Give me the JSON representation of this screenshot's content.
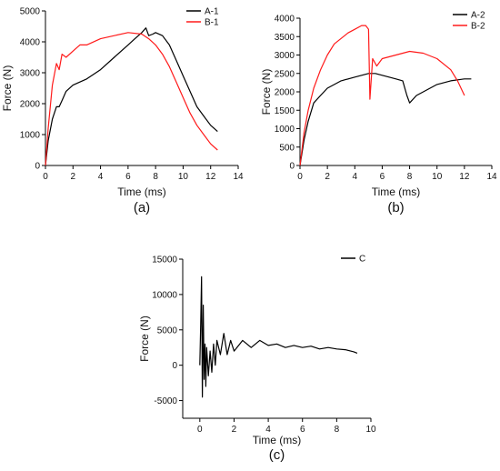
{
  "chart_data": [
    {
      "type": "line",
      "panel_label": "(a)",
      "xlabel": "Time (ms)",
      "ylabel": "Force (N)",
      "xlim": [
        0,
        14
      ],
      "ylim": [
        0,
        5000
      ],
      "xticks": [
        0,
        2,
        4,
        6,
        8,
        10,
        12,
        14
      ],
      "yticks": [
        0,
        1000,
        2000,
        3000,
        4000,
        5000
      ],
      "legend_position": "top-right",
      "series": [
        {
          "name": "A-1",
          "color": "#000000",
          "x": [
            0,
            0.2,
            0.5,
            0.8,
            1.0,
            1.2,
            1.5,
            2.0,
            3.0,
            4.0,
            5.0,
            6.0,
            6.5,
            7.0,
            7.3,
            7.5,
            7.8,
            8.0,
            8.5,
            9.0,
            9.5,
            10.0,
            10.5,
            11.0,
            11.5,
            12.0,
            12.5
          ],
          "y": [
            0,
            800,
            1500,
            1900,
            1900,
            2100,
            2400,
            2600,
            2800,
            3100,
            3500,
            3900,
            4100,
            4300,
            4450,
            4200,
            4250,
            4300,
            4200,
            3900,
            3400,
            2900,
            2400,
            1900,
            1600,
            1300,
            1100
          ]
        },
        {
          "name": "B-1",
          "color": "#ff1a1a",
          "x": [
            0,
            0.2,
            0.5,
            0.8,
            1.0,
            1.2,
            1.5,
            2.0,
            2.5,
            3.0,
            4.0,
            5.0,
            6.0,
            7.0,
            7.5,
            8.0,
            8.5,
            9.0,
            9.5,
            10.0,
            10.5,
            11.0,
            11.5,
            12.0,
            12.5
          ],
          "y": [
            0,
            1200,
            2600,
            3300,
            3100,
            3600,
            3500,
            3700,
            3900,
            3900,
            4100,
            4200,
            4300,
            4250,
            4100,
            3900,
            3600,
            3200,
            2700,
            2200,
            1700,
            1300,
            1000,
            700,
            500
          ]
        }
      ]
    },
    {
      "type": "line",
      "panel_label": "(b)",
      "xlabel": "Time (ms)",
      "ylabel": "Force (N)",
      "xlim": [
        0,
        14
      ],
      "ylim": [
        0,
        4000
      ],
      "xticks": [
        0,
        2,
        4,
        6,
        8,
        10,
        12,
        14
      ],
      "yticks": [
        0,
        500,
        1000,
        1500,
        2000,
        2500,
        3000,
        3500,
        4000
      ],
      "legend_position": "top-right",
      "series": [
        {
          "name": "A-2",
          "color": "#000000",
          "x": [
            0,
            0.3,
            0.6,
            1.0,
            1.5,
            2.0,
            3.0,
            4.0,
            5.0,
            5.5,
            6.0,
            6.5,
            7.0,
            7.5,
            7.8,
            8.0,
            8.5,
            9.0,
            10.0,
            11.0,
            12.0,
            12.5
          ],
          "y": [
            0,
            700,
            1200,
            1700,
            1900,
            2100,
            2300,
            2400,
            2500,
            2500,
            2450,
            2400,
            2350,
            2300,
            1900,
            1700,
            1900,
            2000,
            2200,
            2300,
            2350,
            2350
          ]
        },
        {
          "name": "B-2",
          "color": "#ff1a1a",
          "x": [
            0,
            0.3,
            0.6,
            1.0,
            1.5,
            2.0,
            2.5,
            3.0,
            3.5,
            4.0,
            4.5,
            4.8,
            5.0,
            5.1,
            5.3,
            5.6,
            6.0,
            7.0,
            8.0,
            9.0,
            10.0,
            11.0,
            11.5,
            12.0
          ],
          "y": [
            0,
            900,
            1500,
            2100,
            2600,
            3000,
            3300,
            3450,
            3600,
            3700,
            3800,
            3800,
            3700,
            1800,
            2900,
            2700,
            2900,
            3000,
            3100,
            3050,
            2900,
            2600,
            2300,
            1900
          ]
        }
      ]
    },
    {
      "type": "line",
      "panel_label": "(c)",
      "xlabel": "Time (ms)",
      "ylabel": "Force (N)",
      "xlim": [
        -1,
        10
      ],
      "ylim": [
        -7500,
        15000
      ],
      "xticks": [
        0,
        2,
        4,
        6,
        8,
        10
      ],
      "yticks": [
        -5000,
        0,
        5000,
        10000,
        15000
      ],
      "legend_position": "top-right",
      "series": [
        {
          "name": "C",
          "color": "#000000",
          "x": [
            0,
            0.05,
            0.1,
            0.15,
            0.2,
            0.25,
            0.3,
            0.35,
            0.4,
            0.5,
            0.6,
            0.7,
            0.8,
            0.9,
            1.0,
            1.2,
            1.4,
            1.6,
            1.8,
            2.0,
            2.5,
            3.0,
            3.5,
            4.0,
            4.5,
            5.0,
            5.5,
            6.0,
            6.5,
            7.0,
            7.5,
            8.0,
            8.5,
            9.0,
            9.2
          ],
          "y": [
            0,
            6000,
            12500,
            -4500,
            8500,
            -2000,
            3000,
            -3000,
            2500,
            -1500,
            2000,
            -1000,
            3000,
            0,
            3500,
            1500,
            4500,
            1500,
            3500,
            2000,
            3500,
            2500,
            3500,
            2800,
            3000,
            2500,
            2800,
            2500,
            2700,
            2300,
            2500,
            2300,
            2200,
            1900,
            1700
          ]
        }
      ]
    }
  ]
}
